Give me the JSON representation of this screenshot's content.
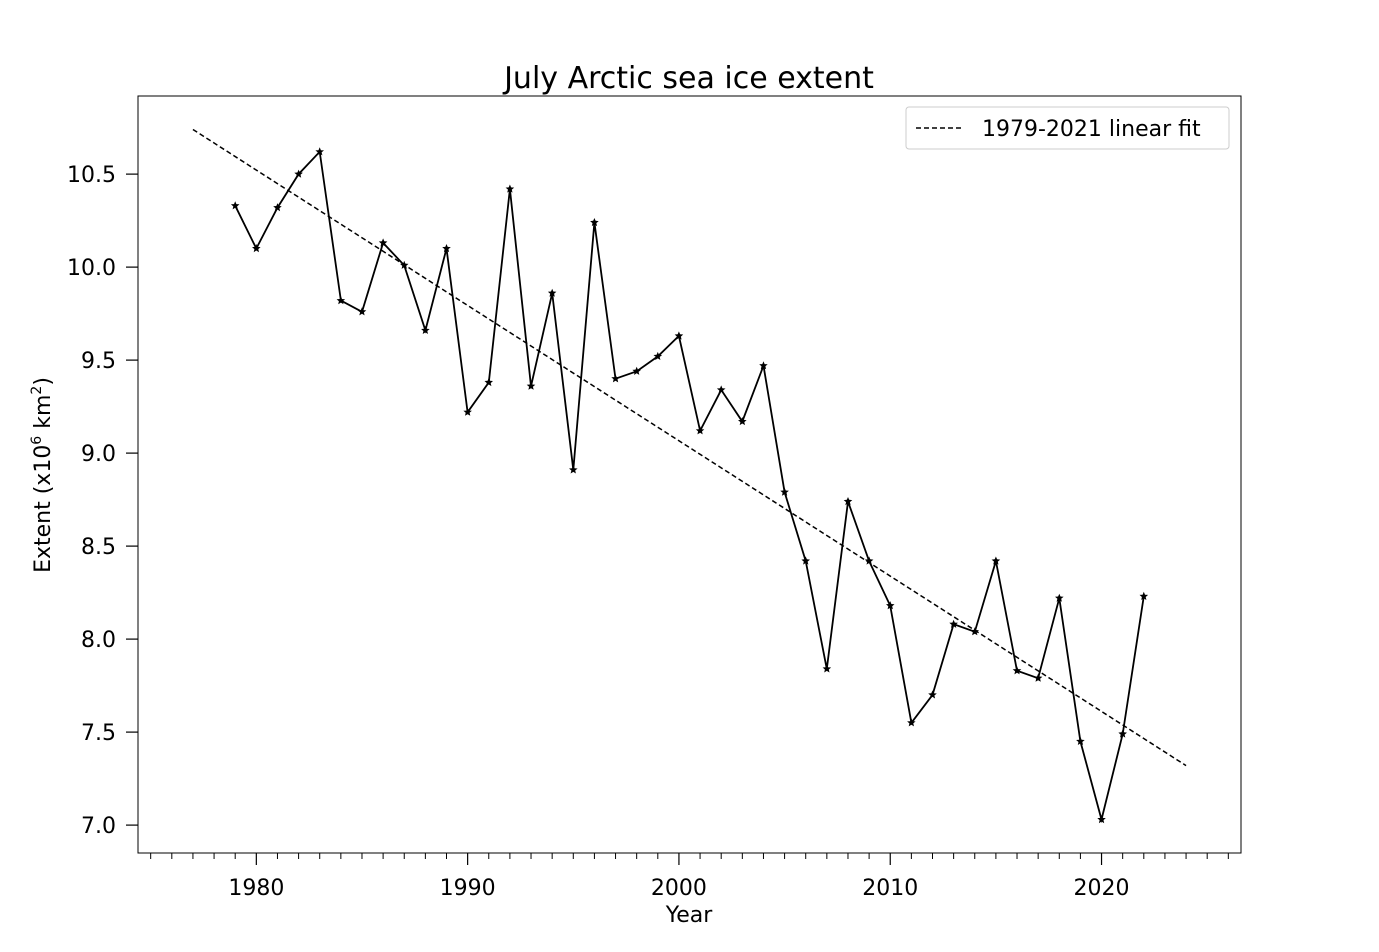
{
  "chart_data": {
    "type": "line",
    "title": "July Arctic sea ice extent",
    "xlabel": "Year",
    "ylabel_prefix": "Extent (x10",
    "ylabel_sup1": "6",
    "ylabel_mid": " km",
    "ylabel_sup2": "2",
    "ylabel_suffix": ")",
    "xlim": [
      1974.4,
      2026.6
    ],
    "ylim": [
      6.85,
      10.92
    ],
    "xticks": [
      1980,
      1990,
      2000,
      2010,
      2020
    ],
    "xtick_labels": [
      "1980",
      "1990",
      "2000",
      "2010",
      "2020"
    ],
    "yticks": [
      7.0,
      7.5,
      8.0,
      8.5,
      9.0,
      9.5,
      10.0,
      10.5
    ],
    "ytick_labels": [
      "7.0",
      "7.5",
      "8.0",
      "8.5",
      "9.0",
      "9.5",
      "10.0",
      "10.5"
    ],
    "grid": false,
    "legend_position": "top-right",
    "series": [
      {
        "marker": "star",
        "color": "#000000",
        "x": [
          1979,
          1980,
          1981,
          1982,
          1983,
          1984,
          1985,
          1986,
          1987,
          1988,
          1989,
          1990,
          1991,
          1992,
          1993,
          1994,
          1995,
          1996,
          1997,
          1998,
          1999,
          2000,
          2001,
          2002,
          2003,
          2004,
          2005,
          2006,
          2007,
          2008,
          2009,
          2010,
          2011,
          2012,
          2013,
          2014,
          2015,
          2016,
          2017,
          2018,
          2019,
          2020,
          2021,
          2022
        ],
        "y": [
          10.33,
          10.1,
          10.32,
          10.5,
          10.62,
          9.82,
          9.76,
          10.13,
          10.01,
          9.66,
          10.1,
          9.22,
          9.38,
          10.42,
          9.36,
          9.86,
          8.91,
          10.24,
          9.4,
          9.44,
          9.52,
          9.63,
          9.12,
          9.34,
          9.17,
          9.47,
          8.79,
          8.42,
          7.84,
          8.74,
          8.42,
          8.18,
          7.55,
          7.7,
          8.08,
          8.04,
          8.42,
          7.83,
          7.79,
          8.22,
          7.45,
          7.03,
          7.49,
          8.23
        ]
      },
      {
        "name": "1979-2021 linear fit",
        "style": "dashed",
        "color": "#000000",
        "x": [
          1977,
          2024
        ],
        "y": [
          10.74,
          7.32
        ]
      }
    ]
  }
}
